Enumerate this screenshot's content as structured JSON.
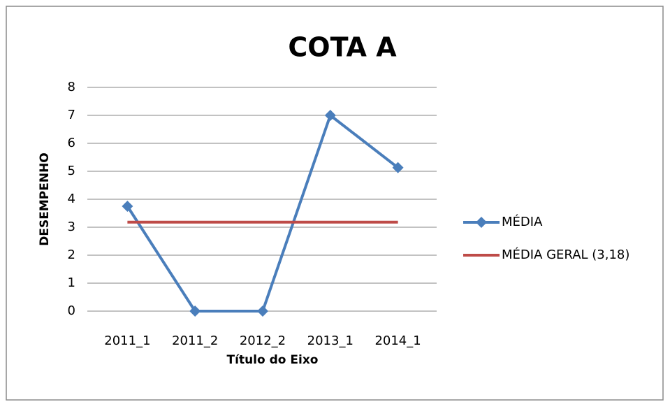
{
  "chart_data": {
    "type": "line",
    "title": "COTA A",
    "y_label": "DESEMPENHO",
    "x_label": "Título do Eixo",
    "categories": [
      "2011_1",
      "2011_2",
      "2012_2",
      "2013_1",
      "2014_1"
    ],
    "series": [
      {
        "name": "MÉDIA",
        "color": "#4a7ebb",
        "values": [
          3.75,
          0,
          0,
          7,
          5.13
        ],
        "marker": "diamond"
      },
      {
        "name": "MÉDIA GERAL (3,18)",
        "color": "#be4b48",
        "values": [
          3.18,
          3.18,
          3.18,
          3.18,
          3.18
        ],
        "marker": "none"
      }
    ],
    "ylim": [
      0,
      8
    ],
    "yticks": [
      0,
      1,
      2,
      3,
      4,
      5,
      6,
      7,
      8
    ],
    "grid": true,
    "legend": "right"
  }
}
